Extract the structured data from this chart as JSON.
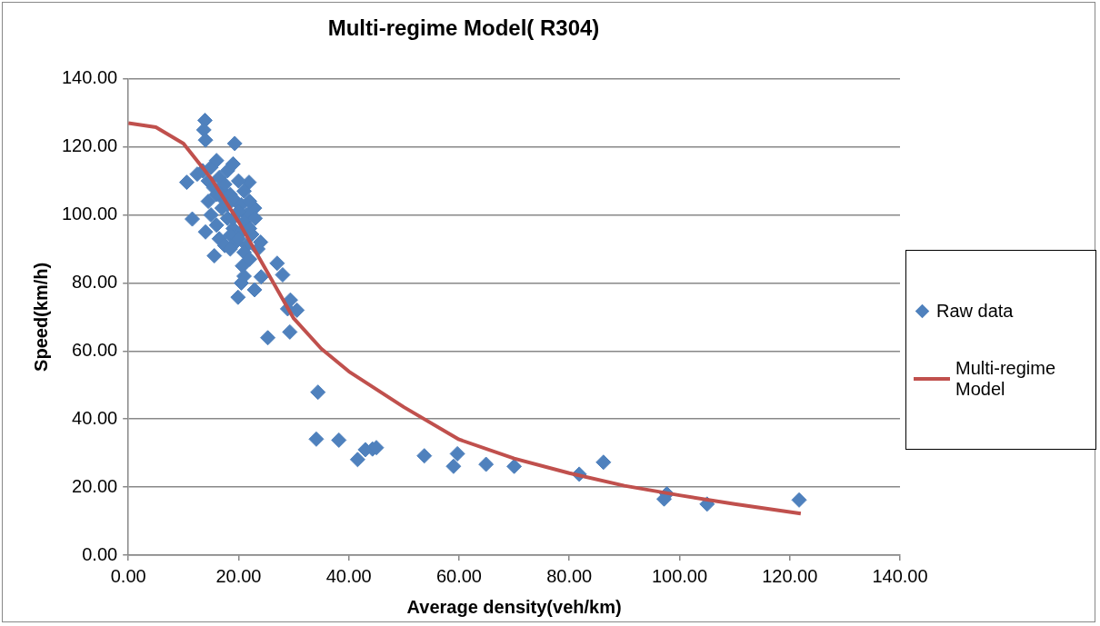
{
  "chart_data": {
    "type": "scatter",
    "title": "Multi-regime Model( R304)",
    "xlabel": "Average density(veh/km)",
    "ylabel": "Speed(km/h)",
    "xlim": [
      0,
      140
    ],
    "ylim": [
      0,
      140
    ],
    "xticks": [
      {
        "value": 0,
        "label": "0.00"
      },
      {
        "value": 20,
        "label": "20.00"
      },
      {
        "value": 40,
        "label": "40.00"
      },
      {
        "value": 60,
        "label": "60.00"
      },
      {
        "value": 80,
        "label": "80.00"
      },
      {
        "value": 100,
        "label": "100.00"
      },
      {
        "value": 120,
        "label": "120.00"
      },
      {
        "value": 140,
        "label": "140.00"
      }
    ],
    "yticks": [
      {
        "value": 0,
        "label": "0.00"
      },
      {
        "value": 20,
        "label": "20.00"
      },
      {
        "value": 40,
        "label": "40.00"
      },
      {
        "value": 60,
        "label": "60.00"
      },
      {
        "value": 80,
        "label": "80.00"
      },
      {
        "value": 100,
        "label": "100.00"
      },
      {
        "value": 120,
        "label": "120.00"
      },
      {
        "value": 140,
        "label": "140.00"
      }
    ],
    "grid": "y",
    "legend": "right",
    "marker": "diamond",
    "series": [
      {
        "name": "Raw data",
        "type": "scatter",
        "color": "#4f81bd",
        "x": [
          13.9,
          13.7,
          14.0,
          19.3,
          10.6,
          11.6,
          21.9,
          22.9,
          22.4,
          15.6,
          19.9,
          20.7,
          22.9,
          27.0,
          28.0,
          28.9,
          29.4,
          30.6,
          29.3,
          25.3,
          24.1,
          34.4,
          34.1,
          38.2,
          41.6,
          43.0,
          44.3,
          45.0,
          53.7,
          59.7,
          59.0,
          64.9,
          70.0,
          81.8,
          86.2,
          97.7,
          97.2,
          105.0,
          121.7,
          12.5,
          13.5,
          14.5,
          15.0,
          15.5,
          16.0,
          16.5,
          17.0,
          17.5,
          18.0,
          18.5,
          19.0,
          19.5,
          20.0,
          20.5,
          21.0,
          21.5,
          22.0,
          23.0,
          14.0,
          15.0,
          16.0,
          17.0,
          18.0,
          19.0,
          20.0,
          21.0,
          22.0,
          16.5,
          17.5,
          18.5,
          19.5,
          20.5,
          21.5,
          23.5,
          17.0,
          18.0,
          19.0,
          20.0,
          21.0,
          22.0,
          14.5,
          16.0,
          18.5,
          21.0,
          24.0,
          20.5
        ],
        "values": [
          127.8,
          125.0,
          122.0,
          121.0,
          109.6,
          98.8,
          109.6,
          102.0,
          94.3,
          88.0,
          75.8,
          85.0,
          78.0,
          85.8,
          82.4,
          72.4,
          75.0,
          72.0,
          65.6,
          63.9,
          81.8,
          47.9,
          34.1,
          33.8,
          28.1,
          31.0,
          31.2,
          31.6,
          29.2,
          29.8,
          26.1,
          26.7,
          26.1,
          23.8,
          27.3,
          18.0,
          16.5,
          15.0,
          16.2,
          112.0,
          113.0,
          110.0,
          114.0,
          108.0,
          116.0,
          111.0,
          107.0,
          109.0,
          113.0,
          106.0,
          115.0,
          104.0,
          110.0,
          103.0,
          107.0,
          100.0,
          104.0,
          99.0,
          95.0,
          100.0,
          97.0,
          102.0,
          99.0,
          96.0,
          101.0,
          98.0,
          96.0,
          93.0,
          91.0,
          94.0,
          92.0,
          95.0,
          91.0,
          90.0,
          105.0,
          103.0,
          99.0,
          93.0,
          89.0,
          87.0,
          104.0,
          106.0,
          90.0,
          82.0,
          92.0,
          80.0
        ]
      },
      {
        "name": "Multi-regime Model",
        "type": "line",
        "color": "#c0504d",
        "marker": "none",
        "line_style": "solid",
        "x": [
          0,
          5,
          10,
          15,
          20,
          25,
          30,
          35,
          40,
          50,
          60,
          70,
          80,
          90,
          100,
          110,
          122
        ],
        "values": [
          127.0,
          125.8,
          121.0,
          110.8,
          98.0,
          83.8,
          69.6,
          60.7,
          54.0,
          43.5,
          34.0,
          28.4,
          24.1,
          20.4,
          17.6,
          15.0,
          12.2
        ]
      }
    ]
  }
}
